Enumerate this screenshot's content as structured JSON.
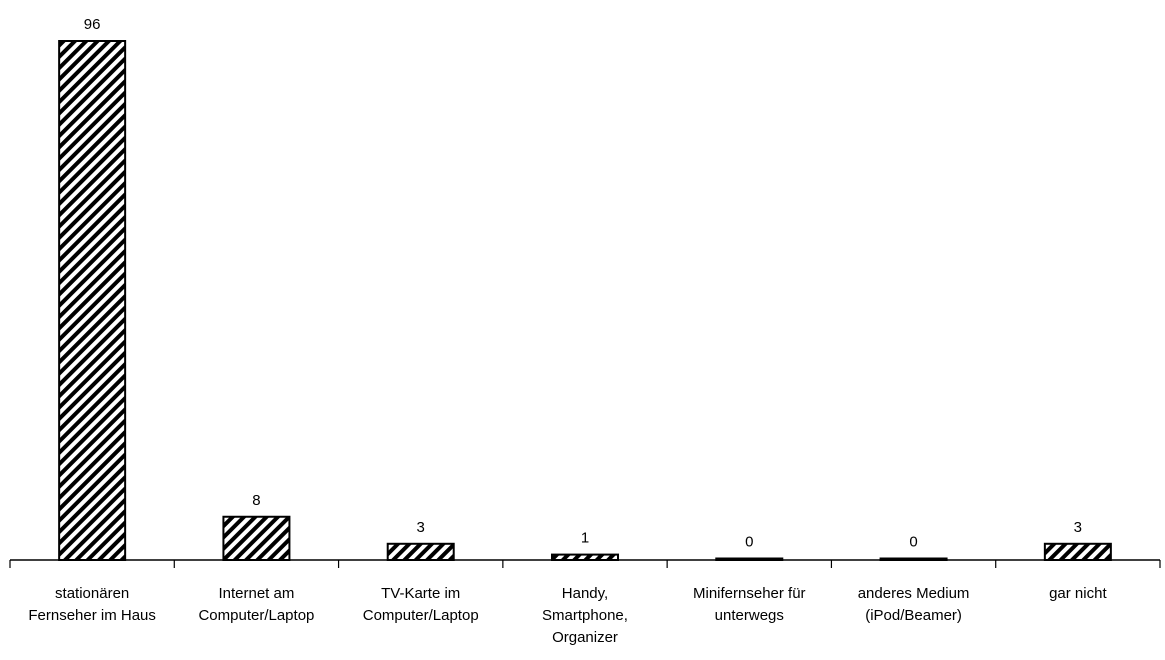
{
  "chart_data": {
    "type": "bar",
    "title": "",
    "xlabel": "",
    "ylabel": "",
    "categories": [
      [
        "stationären",
        "Fernseher im Haus"
      ],
      [
        "Internet am",
        "Computer/Laptop"
      ],
      [
        "TV-Karte im",
        "Computer/Laptop"
      ],
      [
        "Handy,",
        "Smartphone,",
        "Organizer"
      ],
      [
        "Minifernseher für",
        "unterwegs"
      ],
      [
        "anderes Medium",
        "(iPod/Beamer)"
      ],
      [
        "gar nicht"
      ]
    ],
    "values": [
      96,
      8,
      3,
      1,
      0,
      0,
      3
    ],
    "ylim": [
      0,
      96
    ],
    "bar_fill": "hatched",
    "colors": {
      "stroke": "#000000",
      "hatch": "#000000",
      "background": "#ffffff"
    },
    "grid": false,
    "legend": "none"
  }
}
